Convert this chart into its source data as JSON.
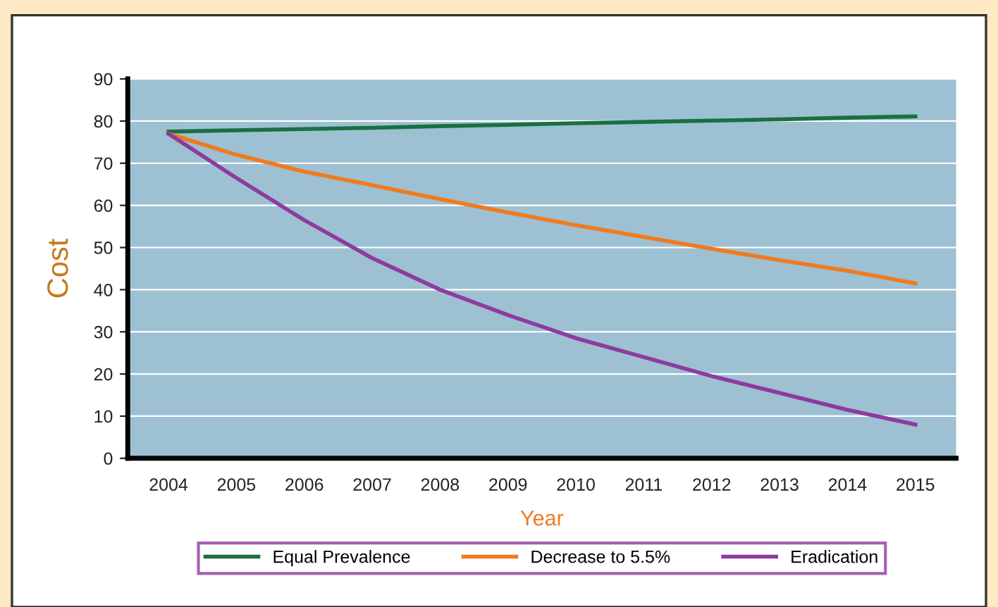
{
  "chart_data": {
    "type": "line",
    "xlabel": "Year",
    "ylabel": "Cost",
    "categories": [
      "2004",
      "2005",
      "2006",
      "2007",
      "2008",
      "2009",
      "2010",
      "2011",
      "2012",
      "2013",
      "2014",
      "2015"
    ],
    "series": [
      {
        "name": "Equal Prevalence",
        "color": "#1a7040",
        "values": [
          77.5,
          77.8,
          78.1,
          78.4,
          78.8,
          79.1,
          79.5,
          79.8,
          80.1,
          80.4,
          80.8,
          81.1
        ]
      },
      {
        "name": "Decrease to 5.5%",
        "color": "#f07a1e",
        "values": [
          77,
          72,
          68,
          64.8,
          61.5,
          58.3,
          55.3,
          52.5,
          49.7,
          47,
          44.5,
          41.5
        ]
      },
      {
        "name": "Eradication",
        "color": "#8e3b9e",
        "values": [
          77,
          66.5,
          56.5,
          47.5,
          40,
          34,
          28.5,
          24,
          19.5,
          15.5,
          11.5,
          8
        ]
      }
    ],
    "ylim": [
      0,
      90
    ],
    "yticks": [
      0,
      10,
      20,
      30,
      40,
      50,
      60,
      70,
      80,
      90
    ],
    "grid": "y",
    "legend": "bottom",
    "marker": "none",
    "line_style": "solid"
  }
}
